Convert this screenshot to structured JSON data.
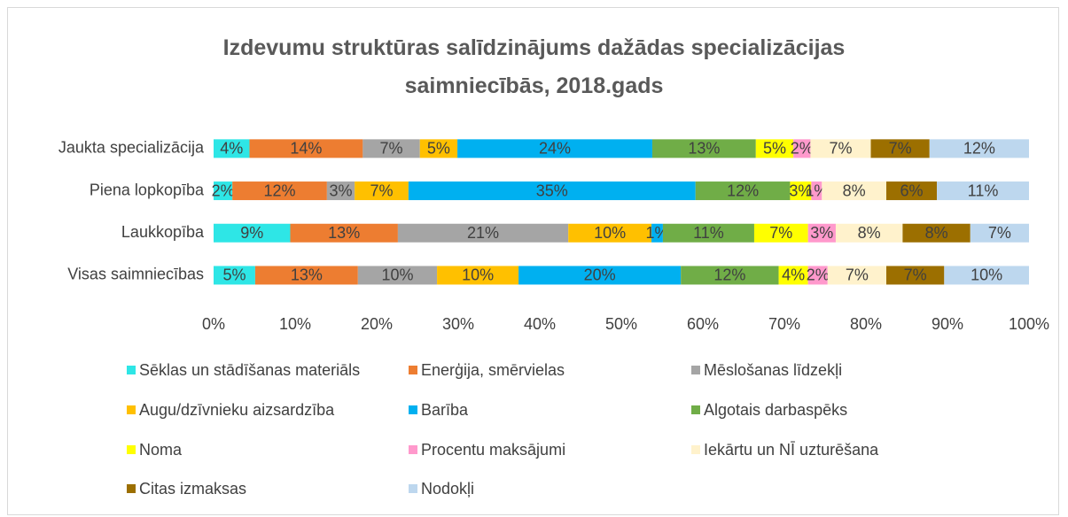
{
  "chart_data": {
    "type": "stacked_barh",
    "title": "Izdevumu struktūras salīdzinājums dažādas specializācijas saimniecībās, 2018.gads",
    "categories": [
      "Jaukta specializācija",
      "Piena lopkopība",
      "Laukkopība",
      "Visas saimniecības"
    ],
    "series": [
      {
        "name": "Sēklas un stādīšanas materiāls",
        "color": "#2ee6e6",
        "values": [
          4.4,
          2.3,
          9.4,
          5.1
        ],
        "value_labels": [
          "4%",
          "2%",
          "9%",
          "5%"
        ]
      },
      {
        "name": "Enerģija, smērvielas",
        "color": "#ed7d31",
        "values": [
          13.9,
          11.6,
          13.2,
          12.6
        ],
        "value_labels": [
          "14%",
          "12%",
          "13%",
          "13%"
        ]
      },
      {
        "name": "Mēslošanas līdzekļi",
        "color": "#a5a5a5",
        "values": [
          7.0,
          3.4,
          20.9,
          9.7
        ],
        "value_labels": [
          "7%",
          "3%",
          "21%",
          "10%"
        ]
      },
      {
        "name": "Augu/dzīvnieku aizsardzība",
        "color": "#ffc000",
        "values": [
          4.6,
          6.6,
          10.2,
          10.0
        ],
        "value_labels": [
          "5%",
          "7%",
          "10%",
          "10%"
        ]
      },
      {
        "name": "Barība",
        "color": "#00b0f0",
        "values": [
          23.9,
          35.2,
          1.4,
          19.9
        ],
        "value_labels": [
          "24%",
          "35%",
          "1%",
          "20%"
        ]
      },
      {
        "name": "Algotais darbaspēks",
        "color": "#70ad47",
        "values": [
          12.7,
          11.6,
          11.2,
          12.0
        ],
        "value_labels": [
          "13%",
          "12%",
          "11%",
          "12%"
        ]
      },
      {
        "name": "Noma",
        "color": "#ffff00",
        "values": [
          4.6,
          2.6,
          6.6,
          3.6
        ],
        "value_labels": [
          "5%",
          "3%",
          "7%",
          "4%"
        ]
      },
      {
        "name": "Procentu maksājumi",
        "color": "#ff99cc",
        "values": [
          2.1,
          1.3,
          3.4,
          2.4
        ],
        "value_labels": [
          "2%",
          "1%",
          "3%",
          "2%"
        ]
      },
      {
        "name": "Iekārtu un NĪ uzturēšana",
        "color": "#fff2cc",
        "values": [
          7.4,
          7.9,
          8.2,
          7.2
        ],
        "value_labels": [
          "7%",
          "8%",
          "8%",
          "7%"
        ]
      },
      {
        "name": "Citas izmaksas",
        "color": "#9c6f00",
        "values": [
          7.2,
          6.2,
          8.3,
          7.1
        ],
        "value_labels": [
          "7%",
          "6%",
          "8%",
          "7%"
        ]
      },
      {
        "name": "Nodokļi",
        "color": "#bdd7ee",
        "values": [
          12.2,
          11.3,
          7.2,
          10.4
        ],
        "value_labels": [
          "12%",
          "11%",
          "7%",
          "10%"
        ]
      }
    ],
    "xlim": [
      0,
      100
    ],
    "xticks": [
      {
        "value": 0,
        "label": "0%"
      },
      {
        "value": 10,
        "label": "10%"
      },
      {
        "value": 20,
        "label": "20%"
      },
      {
        "value": 30,
        "label": "30%"
      },
      {
        "value": 40,
        "label": "40%"
      },
      {
        "value": 50,
        "label": "50%"
      },
      {
        "value": 60,
        "label": "60%"
      },
      {
        "value": 70,
        "label": "70%"
      },
      {
        "value": 80,
        "label": "80%"
      },
      {
        "value": 90,
        "label": "90%"
      },
      {
        "value": 100,
        "label": "100%"
      }
    ],
    "grid": false,
    "legend": "bottom"
  }
}
